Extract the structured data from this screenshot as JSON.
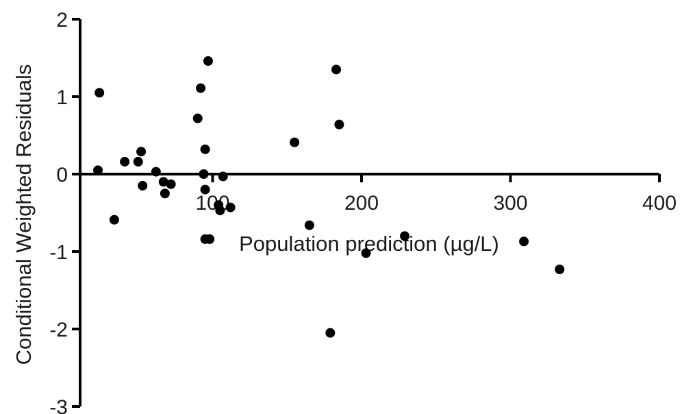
{
  "chart_data": {
    "type": "scatter",
    "title": "",
    "xlabel": "Population prediction (µg/L)",
    "ylabel": "Conditional Weighted Residuals",
    "xlim": [
      0,
      400
    ],
    "ylim": [
      -3,
      2
    ],
    "x_ticks": [
      "100",
      "200",
      "300",
      "400"
    ],
    "y_ticks": [
      "2",
      "1",
      "0",
      "-1",
      "-2",
      "-3"
    ],
    "grid": false,
    "legend": "none",
    "points": [
      {
        "x": 24,
        "y": 1.05
      },
      {
        "x": 23,
        "y": 0.05
      },
      {
        "x": 41,
        "y": 0.16
      },
      {
        "x": 50,
        "y": 0.16
      },
      {
        "x": 52,
        "y": 0.29
      },
      {
        "x": 53,
        "y": -0.15
      },
      {
        "x": 34,
        "y": -0.59
      },
      {
        "x": 62,
        "y": 0.03
      },
      {
        "x": 67,
        "y": -0.1
      },
      {
        "x": 68,
        "y": -0.25
      },
      {
        "x": 72,
        "y": -0.13
      },
      {
        "x": 90,
        "y": 0.72
      },
      {
        "x": 92,
        "y": 1.11
      },
      {
        "x": 95,
        "y": 0.32
      },
      {
        "x": 94,
        "y": 0.0
      },
      {
        "x": 95,
        "y": -0.2
      },
      {
        "x": 97,
        "y": 1.46
      },
      {
        "x": 95,
        "y": -0.84
      },
      {
        "x": 98,
        "y": -0.84
      },
      {
        "x": 107,
        "y": -0.03
      },
      {
        "x": 104,
        "y": -0.4
      },
      {
        "x": 105,
        "y": -0.47
      },
      {
        "x": 112,
        "y": -0.43
      },
      {
        "x": 155,
        "y": 0.41
      },
      {
        "x": 165,
        "y": -0.66
      },
      {
        "x": 179,
        "y": -2.05
      },
      {
        "x": 183,
        "y": 1.35
      },
      {
        "x": 185,
        "y": 0.64
      },
      {
        "x": 203,
        "y": -1.02
      },
      {
        "x": 229,
        "y": -0.8
      },
      {
        "x": 309,
        "y": -0.87
      },
      {
        "x": 333,
        "y": -1.23
      }
    ]
  }
}
